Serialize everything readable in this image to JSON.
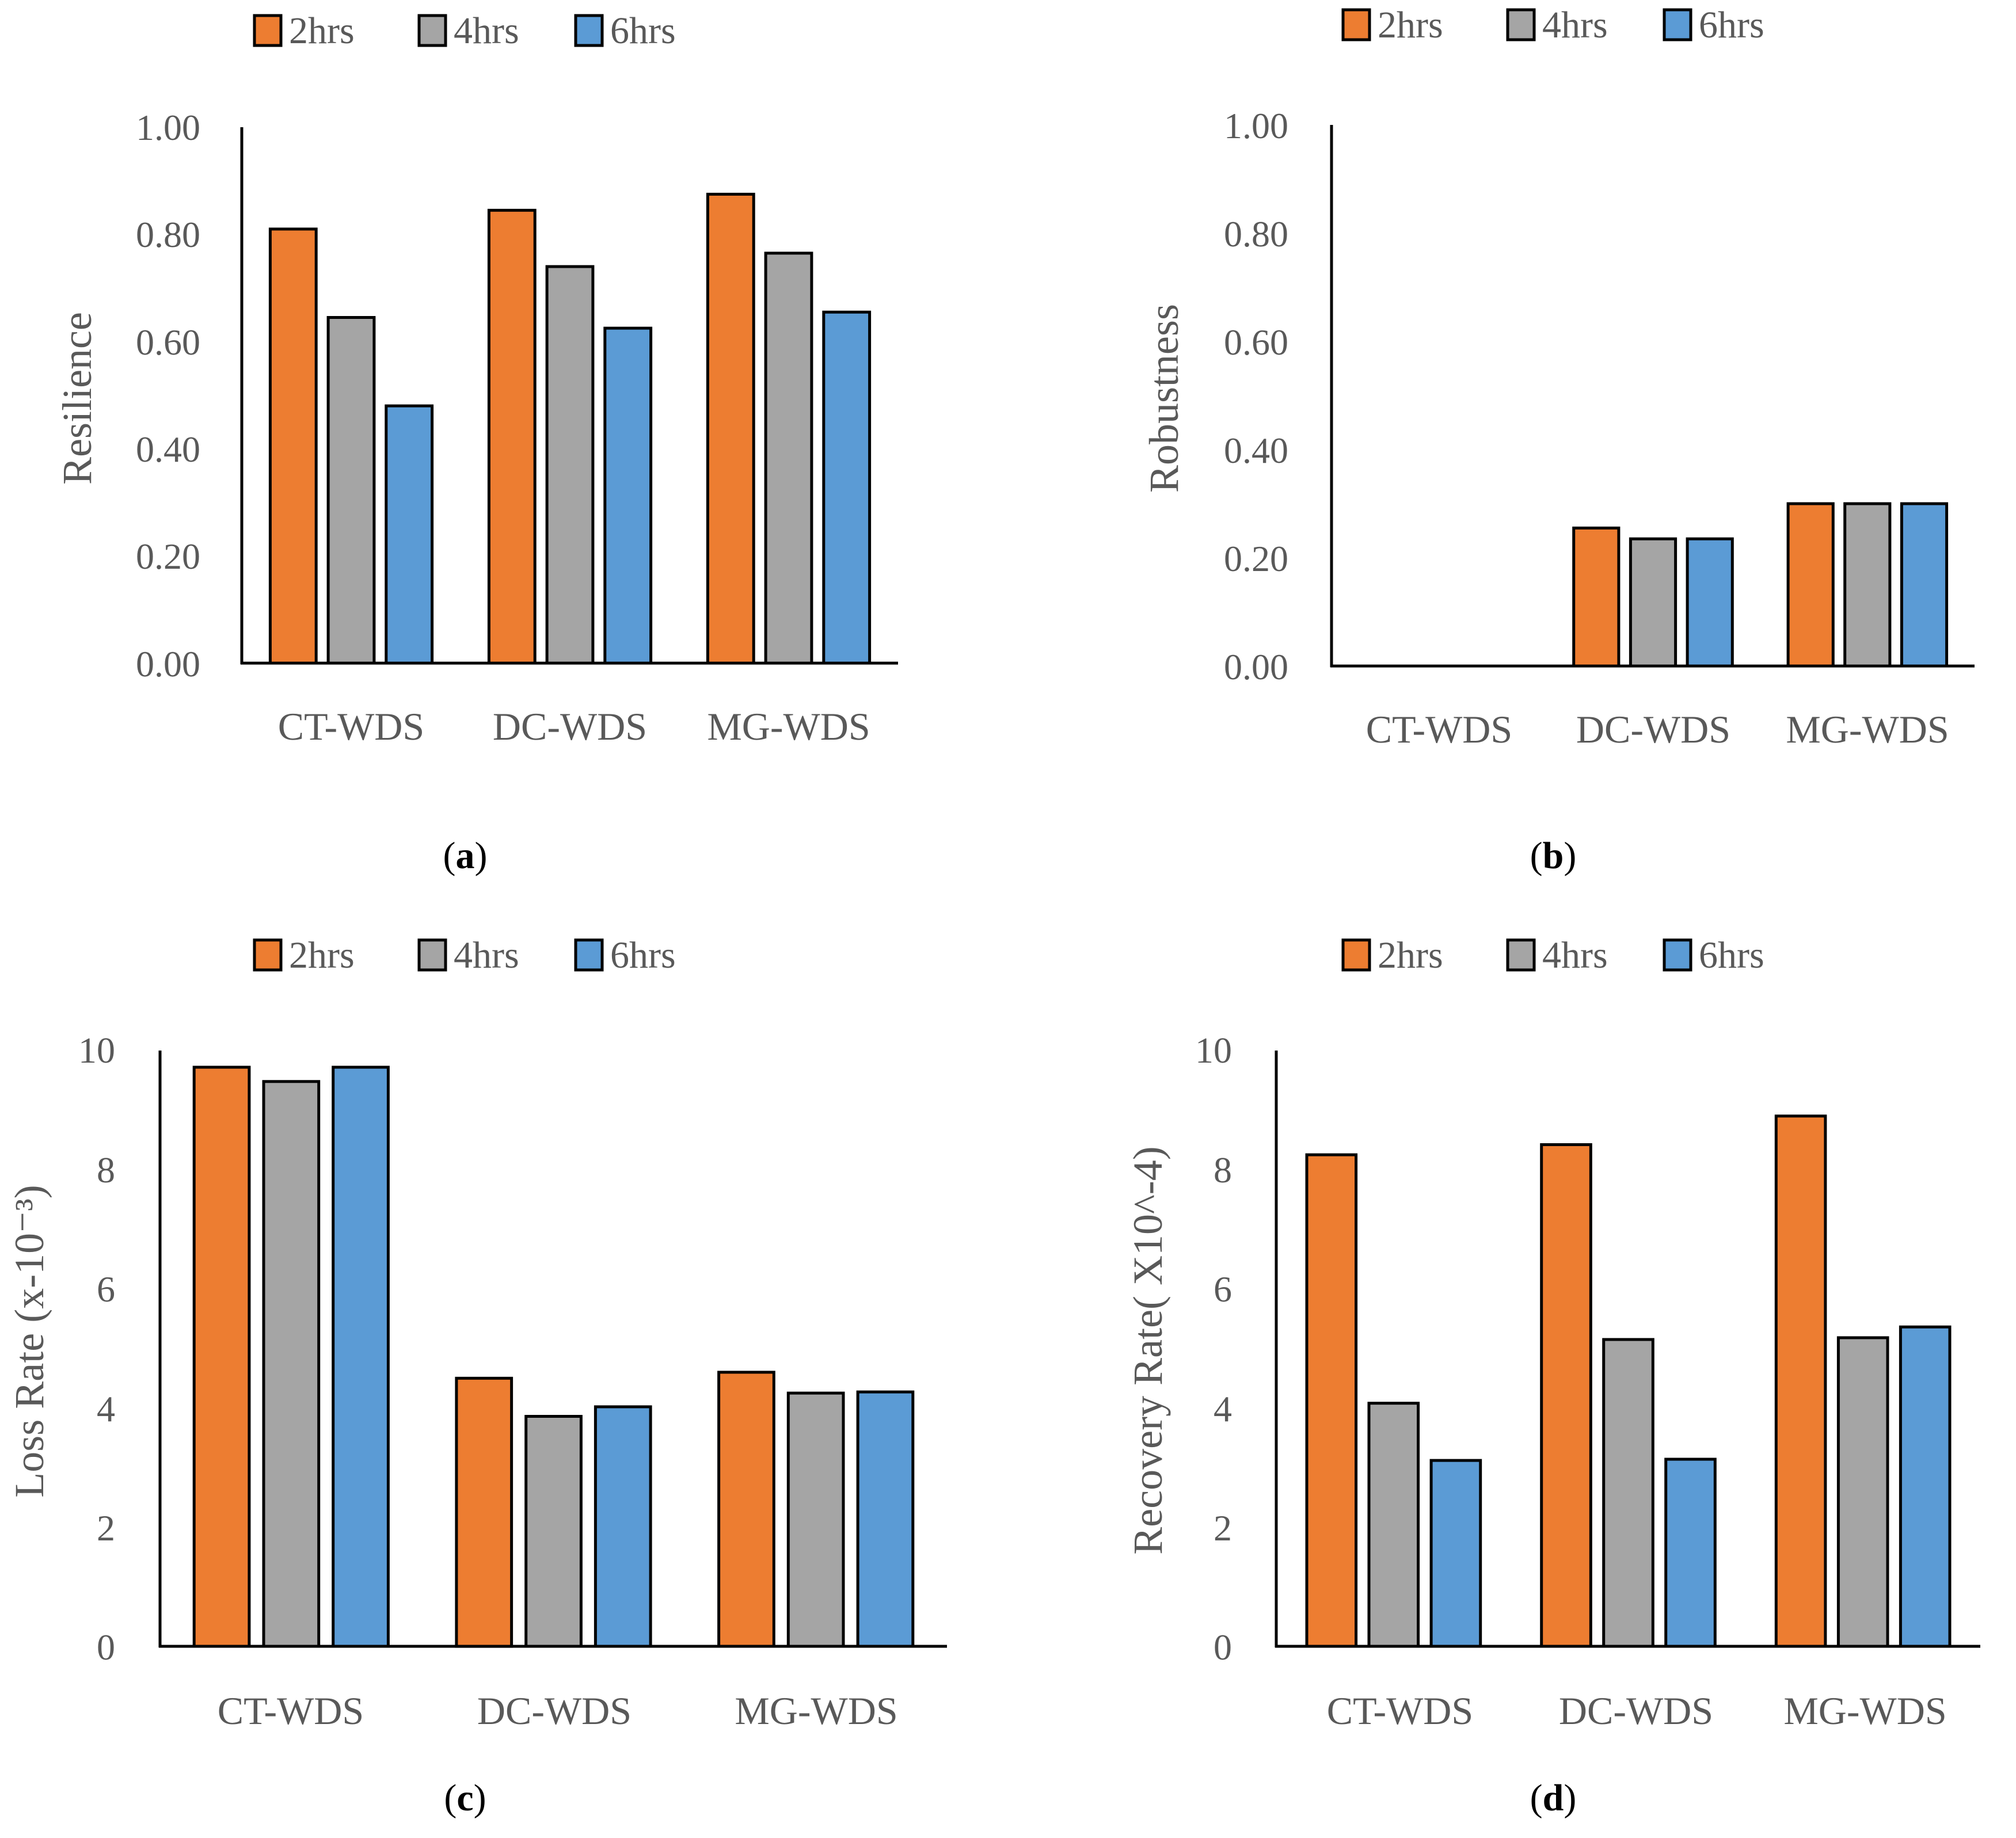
{
  "colors": {
    "2hrs": "#ED7D31",
    "4hrs": "#A5A5A5",
    "6hrs": "#5B9BD5",
    "stroke": "#000000",
    "text": "#595959"
  },
  "chart_data": [
    {
      "id": "a",
      "type": "bar",
      "caption": {
        "open": "(",
        "letter": "a",
        "close": ")"
      },
      "ylabel": "Resilience",
      "xlabel": "",
      "categories": [
        "CT-WDS",
        "DC-WDS",
        "MG-WDS"
      ],
      "ylim": [
        0,
        1
      ],
      "yticks": [
        0,
        0.2,
        0.4,
        0.6,
        0.8,
        1.0
      ],
      "ytick_labels": [
        "0.00",
        "0.20",
        "0.40",
        "0.60",
        "0.80",
        "1.00"
      ],
      "legend_position": "top",
      "series": [
        {
          "name": "2hrs",
          "values": [
            0.81,
            0.845,
            0.875
          ]
        },
        {
          "name": "4hrs",
          "values": [
            0.645,
            0.74,
            0.765
          ]
        },
        {
          "name": "6hrs",
          "values": [
            0.48,
            0.625,
            0.655
          ]
        }
      ]
    },
    {
      "id": "b",
      "type": "bar",
      "caption": {
        "open": "(",
        "letter": "b",
        "close": ")"
      },
      "ylabel": "Robustness",
      "xlabel": "",
      "categories": [
        "CT-WDS",
        "DC-WDS",
        "MG-WDS"
      ],
      "ylim": [
        0,
        1
      ],
      "yticks": [
        0,
        0.2,
        0.4,
        0.6,
        0.8,
        1.0
      ],
      "ytick_labels": [
        "0.00",
        "0.20",
        "0.40",
        "0.60",
        "0.80",
        "1.00"
      ],
      "legend_position": "top",
      "series": [
        {
          "name": "2hrs",
          "values": [
            0,
            0.255,
            0.3
          ]
        },
        {
          "name": "4hrs",
          "values": [
            0,
            0.235,
            0.3
          ]
        },
        {
          "name": "6hrs",
          "values": [
            0,
            0.235,
            0.3
          ]
        }
      ]
    },
    {
      "id": "c",
      "type": "bar",
      "caption": {
        "open": "(",
        "letter": "c",
        "close": ")"
      },
      "ylabel": "Loss Rate (x-10⁻³)",
      "xlabel": "",
      "categories": [
        "CT-WDS",
        "DC-WDS",
        "MG-WDS"
      ],
      "ylim": [
        0,
        10
      ],
      "yticks": [
        0,
        2,
        4,
        6,
        8,
        10
      ],
      "ytick_labels": [
        "0",
        "2",
        "4",
        "6",
        "8",
        "10"
      ],
      "legend_position": "top",
      "series": [
        {
          "name": "2hrs",
          "values": [
            9.72,
            4.5,
            4.6
          ]
        },
        {
          "name": "4hrs",
          "values": [
            9.48,
            3.86,
            4.25
          ]
        },
        {
          "name": "6hrs",
          "values": [
            9.72,
            4.02,
            4.27
          ]
        }
      ]
    },
    {
      "id": "d",
      "type": "bar",
      "caption": {
        "open": "(",
        "letter": "d",
        "close": ")"
      },
      "ylabel": "Recovery Rate( X10^-4)",
      "xlabel": "",
      "categories": [
        "CT-WDS",
        "DC-WDS",
        "MG-WDS"
      ],
      "ylim": [
        0,
        10
      ],
      "yticks": [
        0,
        2,
        4,
        6,
        8,
        10
      ],
      "ytick_labels": [
        "0",
        "2",
        "4",
        "6",
        "8",
        "10"
      ],
      "legend_position": "top",
      "series": [
        {
          "name": "2hrs",
          "values": [
            8.25,
            8.42,
            8.9
          ]
        },
        {
          "name": "4hrs",
          "values": [
            4.08,
            5.15,
            5.18
          ]
        },
        {
          "name": "6hrs",
          "values": [
            3.12,
            3.14,
            5.36
          ]
        }
      ]
    }
  ]
}
